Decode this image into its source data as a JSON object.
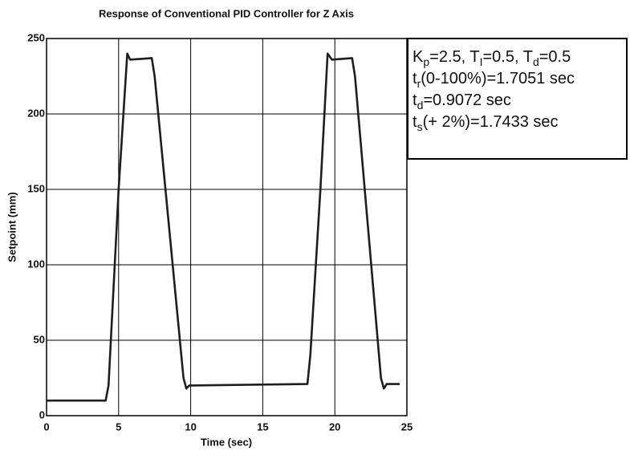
{
  "chart_data": {
    "type": "line",
    "title": "Response of Conventional PID Controller for Z Axis",
    "xlabel": "Time (sec)",
    "ylabel": "Setpoint (mm)",
    "x": [
      0,
      4.1,
      4.3,
      5.0,
      5.6,
      5.8,
      7.3,
      7.5,
      9.5,
      9.7,
      9.9,
      18.1,
      18.3,
      19.0,
      19.5,
      19.8,
      21.2,
      21.4,
      23.2,
      23.4,
      23.6,
      24.5
    ],
    "series": [
      {
        "color": "#1e1e1e",
        "values": [
          10,
          10,
          20,
          150,
          240,
          236,
          237,
          225,
          25,
          18,
          20,
          21,
          40,
          150,
          240,
          236,
          237,
          225,
          25,
          18,
          21,
          21
        ]
      }
    ],
    "xlim": [
      0,
      25
    ],
    "ylim": [
      0,
      250
    ],
    "xticks": [
      0,
      5,
      10,
      15,
      20,
      25
    ],
    "yticks": [
      0,
      50,
      100,
      150,
      200,
      250
    ],
    "grid": true,
    "annotation": [
      [
        "K",
        "p",
        "=2.5, T",
        "I",
        "=0.5, T",
        "d",
        "=0.5"
      ],
      [
        "t",
        "r",
        "(0-100%)=1.7051 sec"
      ],
      [
        "t",
        "d",
        "=0.9072 sec"
      ],
      [
        "t",
        "s",
        "(+ 2%)=1.7433 sec"
      ]
    ]
  }
}
